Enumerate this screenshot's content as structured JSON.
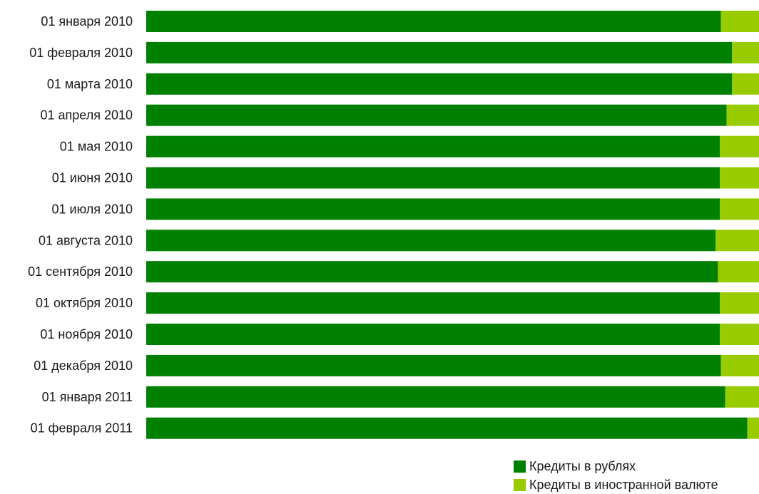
{
  "chart_data": {
    "type": "bar",
    "orientation": "horizontal",
    "stacked": true,
    "normalized": "percent",
    "title": "",
    "xlabel": "",
    "ylabel": "",
    "xlim": [
      0,
      100
    ],
    "grid": false,
    "legend_position": "bottom-right",
    "categories": [
      "01 января 2010",
      "01 февраля 2010",
      "01 марта 2010",
      "01 апреля 2010",
      "01 мая 2010",
      "01 июня 2010",
      "01 июля 2010",
      "01 августа 2010",
      "01 сентября 2010",
      "01 октября 2010",
      "01 ноября 2010",
      "01 декабря 2010",
      "01 января 2011",
      "01 февраля 2011"
    ],
    "series": [
      {
        "name": "Кредиты в рублях",
        "color": "#008000",
        "values": [
          93.8,
          95.6,
          95.6,
          94.7,
          93.6,
          93.6,
          93.6,
          92.9,
          93.3,
          93.6,
          93.6,
          93.8,
          94.5,
          98.1
        ]
      },
      {
        "name": "Кредиты в иностранной валюте",
        "color": "#99cc00",
        "values": [
          6.2,
          4.4,
          4.4,
          5.3,
          6.4,
          6.4,
          6.4,
          7.1,
          6.7,
          6.4,
          6.4,
          6.2,
          5.5,
          1.9
        ]
      }
    ]
  }
}
